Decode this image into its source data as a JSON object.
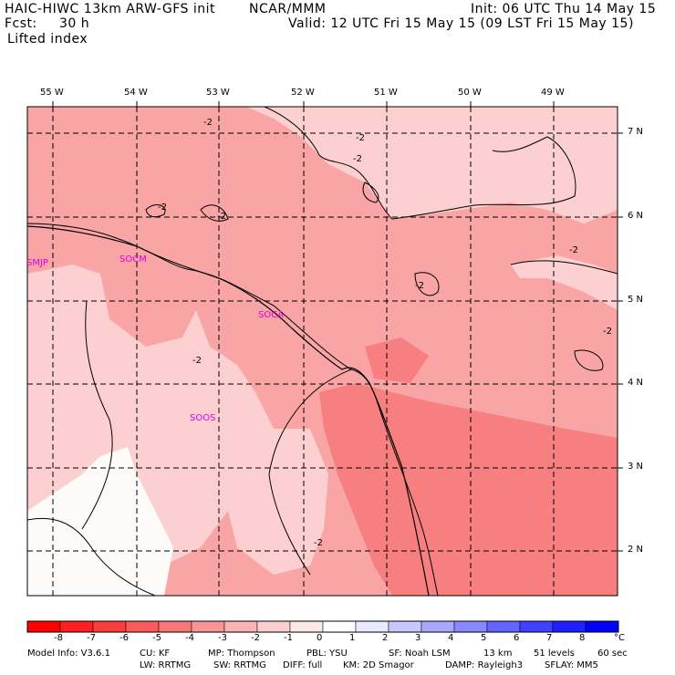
{
  "header": {
    "model": "HAIC-HIWC 13km ARW-GFS init",
    "org": "NCAR/MMM",
    "init": "Init: 06 UTC Thu 14 May 15",
    "fcst_label": "Fcst:",
    "fcst_value": "30 h",
    "valid": "Valid: 12 UTC Fri 15 May 15 (09 LST Fri 15 May 15)",
    "field": "Lifted index"
  },
  "map": {
    "lon_labels": [
      "55 W",
      "54 W",
      "53 W",
      "52 W",
      "51 W",
      "50 W",
      "49 W"
    ],
    "lat_labels": [
      "7 N",
      "6 N",
      "5 N",
      "4 N",
      "3 N",
      "2 N"
    ],
    "contour_value_label": "-2",
    "stations": [
      "SMJP",
      "SOCM",
      "SOCA",
      "SOOS"
    ],
    "colors": {
      "lt_m1": "#fdfafa",
      "lt_m2": "#fcd0d0",
      "lt_m3": "#f9a5a5",
      "lt_m4": "#f77f7f",
      "station": "#e000e0"
    }
  },
  "colorbar": {
    "ticks": [
      "-8",
      "-7",
      "-6",
      "-5",
      "-4",
      "-3",
      "-2",
      "-1",
      "0",
      "1",
      "2",
      "3",
      "4",
      "5",
      "6",
      "7",
      "8"
    ],
    "unit": "°C",
    "colors": [
      "#ff0000",
      "#fd2020",
      "#fb3c3c",
      "#f95a5a",
      "#f77878",
      "#f89696",
      "#f9b4b4",
      "#fbcfcf",
      "#fde8e8",
      "#ffffff",
      "#e8e8ff",
      "#c8c8ff",
      "#a8a8ff",
      "#8888ff",
      "#6464ff",
      "#4040ff",
      "#2020ff",
      "#0000ff"
    ]
  },
  "footer": {
    "row1": [
      "Model Info: V3.6.1",
      "CU: KF",
      "MP: Thompson",
      "PBL: YSU",
      "SF: Noah LSM",
      "13 km",
      "51 levels",
      "60 sec"
    ],
    "row2": [
      "LW: RRTMG",
      "SW: RRTMG",
      "DIFF: full",
      "KM: 2D Smagor",
      "DAMP: Rayleigh3",
      "SFLAY: MM5"
    ]
  }
}
